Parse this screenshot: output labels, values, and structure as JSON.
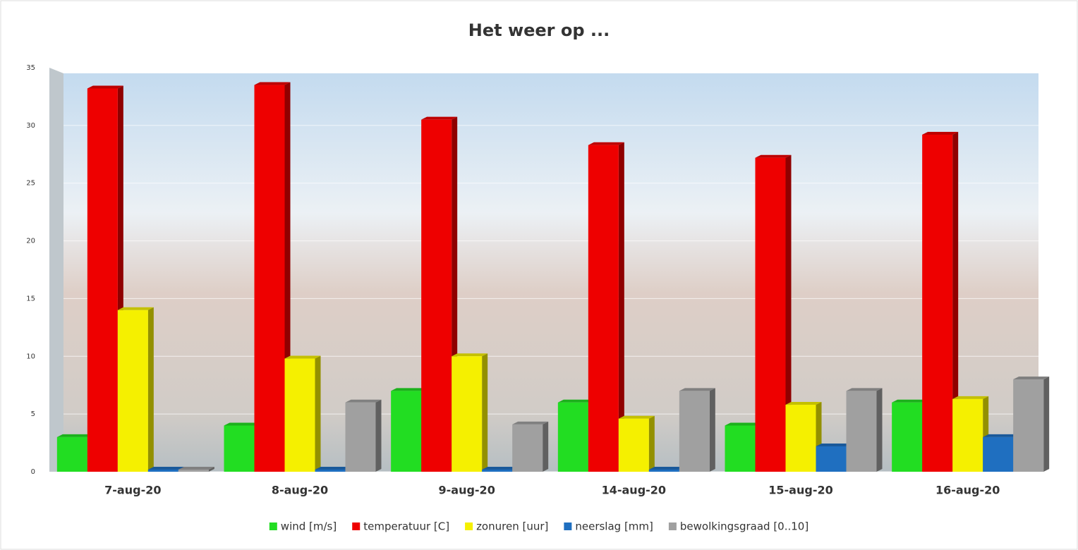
{
  "chart_data": {
    "type": "bar",
    "title": "Het weer op ...",
    "categories": [
      "7-aug-20",
      "8-aug-20",
      "9-aug-20",
      "14-aug-20",
      "15-aug-20",
      "16-aug-20"
    ],
    "series": [
      {
        "name": "wind [m/s]",
        "color": "#22dd22",
        "values": [
          3,
          4,
          7,
          6,
          4,
          6
        ]
      },
      {
        "name": "temperatuur [C]",
        "color": "#ee0000",
        "values": [
          33.2,
          33.5,
          30.5,
          28.3,
          27.2,
          29.2
        ]
      },
      {
        "name": "zonuren [uur]",
        "color": "#f5f000",
        "values": [
          14,
          9.8,
          10,
          4.6,
          5.8,
          6.3
        ]
      },
      {
        "name": "neerslag [mm]",
        "color": "#1f6fc0",
        "values": [
          0,
          0,
          0,
          0,
          2.2,
          3
        ]
      },
      {
        "name": "bewolkingsgraad [0..10]",
        "color": "#a0a0a0",
        "values": [
          0,
          6,
          4.1,
          7,
          7,
          8
        ]
      }
    ],
    "ylim": [
      0,
      35
    ],
    "yticks": [
      0,
      5,
      10,
      15,
      20,
      25,
      30,
      35
    ],
    "grid": true,
    "legend": "bottom"
  }
}
